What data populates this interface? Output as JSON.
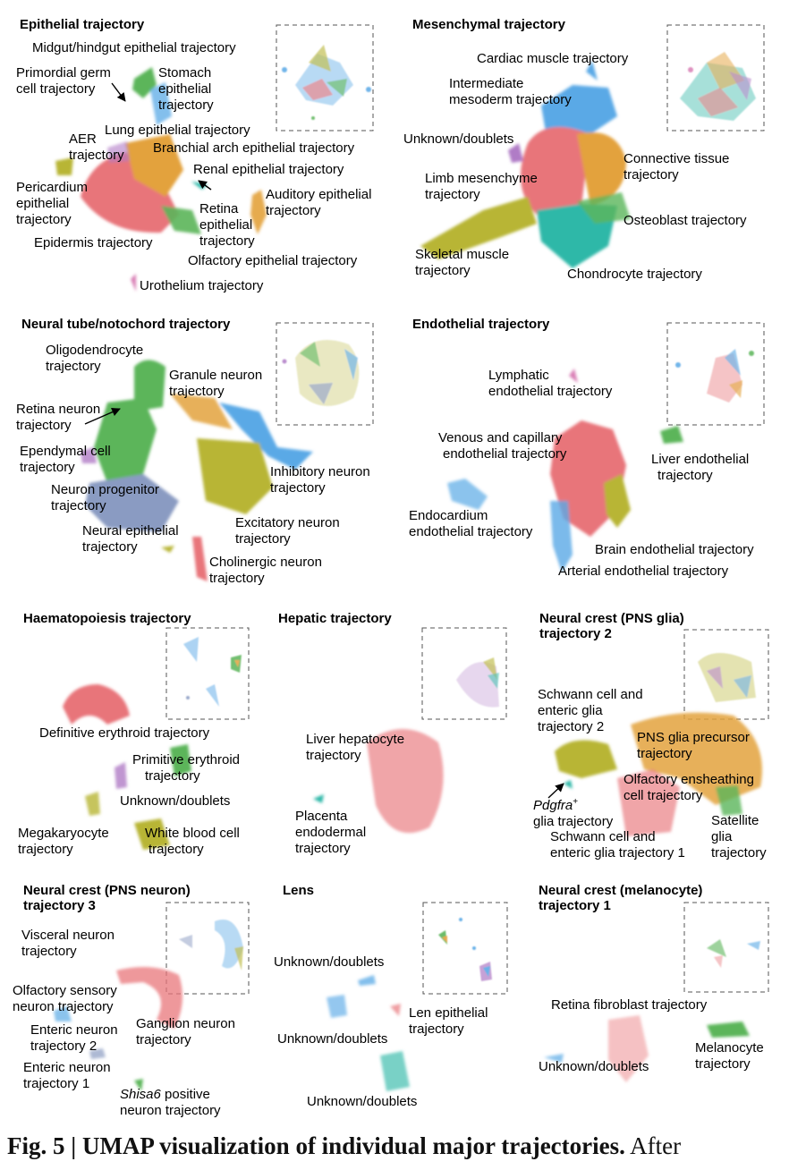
{
  "colors": {
    "red": "#e8757a",
    "orange": "#e3a23c",
    "olive": "#b8b536",
    "green": "#5bb55a",
    "teal": "#2fb8a8",
    "blue": "#5aa9e6",
    "purple": "#b07cc6",
    "pink": "#d97fb5",
    "gray": "#8a9bc2",
    "caption": "#111111"
  },
  "panels": {
    "epithelial": {
      "title": "Epithelial trajectory",
      "labels": {
        "midgut": "Midgut/hindgut epithelial trajectory",
        "pgc1": "Primordial germ",
        "pgc2": "cell trajectory",
        "stomach1": "Stomach",
        "stomach2": "epithelial",
        "stomach3": "trajectory",
        "lung": "Lung epithelial trajectory",
        "aer1": "AER",
        "aer2": "trajectory",
        "branchial": "Branchial arch epithelial trajectory",
        "renal": "Renal epithelial trajectory",
        "peri1": "Pericardium",
        "peri2": "epithelial",
        "peri3": "trajectory",
        "auditory1": "Auditory epithelial",
        "auditory2": "trajectory",
        "retina1": "Retina",
        "retina2": "epithelial",
        "retina3": "trajectory",
        "epidermis": "Epidermis trajectory",
        "olfactory": "Olfactory epithelial trajectory",
        "urothelium": "Urothelium trajectory"
      }
    },
    "mesenchymal": {
      "title": "Mesenchymal trajectory",
      "labels": {
        "cardiac": "Cardiac muscle trajectory",
        "intermediate1": "Intermediate",
        "intermediate2": "mesoderm trajectory",
        "unknown": "Unknown/doublets",
        "connective1": "Connective tissue",
        "connective2": "trajectory",
        "limb1": "Limb mesenchyme",
        "limb2": "trajectory",
        "osteoblast": "Osteoblast trajectory",
        "skeletal1": "Skeletal muscle",
        "skeletal2": "trajectory",
        "chondrocyte": "Chondrocyte trajectory"
      }
    },
    "neural_tube": {
      "title": "Neural tube/notochord trajectory",
      "labels": {
        "oligo1": "Oligodendrocyte",
        "oligo2": "trajectory",
        "granule1": "Granule neuron",
        "granule2": "trajectory",
        "retina1": "Retina neuron",
        "retina2": "trajectory",
        "ependymal1": "Ependymal cell",
        "ependymal2": "trajectory",
        "inhibitory1": "Inhibitory neuron",
        "inhibitory2": "trajectory",
        "progenitor1": "Neuron progenitor",
        "progenitor2": "trajectory",
        "excitatory1": "Excitatory neuron",
        "excitatory2": "trajectory",
        "neural_epi1": "Neural epithelial",
        "neural_epi2": "trajectory",
        "cholinergic1": "Cholinergic neuron",
        "cholinergic2": "trajectory"
      }
    },
    "endothelial": {
      "title": "Endothelial trajectory",
      "labels": {
        "lymphatic1": "Lymphatic",
        "lymphatic2": "endothelial trajectory",
        "venous1": "Venous and capillary",
        "venous2": "endothelial trajectory",
        "liver1": "Liver endothelial",
        "liver2": "trajectory",
        "endocardium1": "Endocardium",
        "endocardium2": "endothelial trajectory",
        "brain": "Brain endothelial trajectory",
        "arterial": "Arterial endothelial trajectory"
      }
    },
    "haematopoiesis": {
      "title": "Haematopoiesis trajectory",
      "labels": {
        "definitive": "Definitive erythroid trajectory",
        "primitive1": "Primitive erythroid",
        "primitive2": "trajectory",
        "unknown": "Unknown/doublets",
        "mega1": "Megakaryocyte",
        "mega2": "trajectory",
        "wbc1": "White blood cell",
        "wbc2": "trajectory"
      }
    },
    "hepatic": {
      "title": "Hepatic trajectory",
      "labels": {
        "hepatocyte1": "Liver hepatocyte",
        "hepatocyte2": "trajectory",
        "placenta1": "Placenta",
        "placenta2": "endodermal",
        "placenta3": "trajectory"
      }
    },
    "pns_glia": {
      "title1": "Neural crest (PNS glia)",
      "title2": "trajectory 2",
      "labels": {
        "schwann2_1": "Schwann cell and",
        "schwann2_2": "enteric glia",
        "schwann2_3": "trajectory 2",
        "precursor1": "PNS glia precursor",
        "precursor2": "trajectory",
        "olfactory1": "Olfactory ensheathing",
        "olfactory2": "cell trajectory",
        "pdgfra_gene": "Pdgfra",
        "pdgfra_sup": "+",
        "pdgfra2": "glia trajectory",
        "satellite1": "Satellite",
        "satellite2": "glia",
        "satellite3": "trajectory",
        "schwann1_1": "Schwann cell and",
        "schwann1_2": "enteric glia trajectory 1"
      }
    },
    "pns_neuron": {
      "title1": "Neural crest (PNS neuron)",
      "title2": "trajectory 3",
      "labels": {
        "visceral1": "Visceral neuron",
        "visceral2": "trajectory",
        "olfactory1": "Olfactory sensory",
        "olfactory2": "neuron trajectory",
        "enteric2_1": "Enteric neuron",
        "enteric2_2": "trajectory 2",
        "ganglion1": "Ganglion neuron",
        "ganglion2": "trajectory",
        "enteric1_1": "Enteric neuron",
        "enteric1_2": "trajectory 1",
        "shisa_gene": "Shisa6",
        "shisa_rest": " positive",
        "shisa2": "neuron trajectory"
      }
    },
    "lens": {
      "title": "Lens",
      "labels": {
        "unknown_a": "Unknown/doublets",
        "len1": "Len epithelial",
        "len2": "trajectory",
        "unknown_b": "Unknown/doublets",
        "unknown_c": "Unknown/doublets"
      }
    },
    "melanocyte": {
      "title1": "Neural crest (melanocyte)",
      "title2": "trajectory 1",
      "labels": {
        "fibroblast": "Retina fibroblast trajectory",
        "melanocyte1": "Melanocyte",
        "melanocyte2": "trajectory",
        "unknown": "Unknown/doublets"
      }
    }
  },
  "caption": {
    "bold": "Fig. 5 | UMAP visualization of individual major trajectories.",
    "rest": " After"
  }
}
